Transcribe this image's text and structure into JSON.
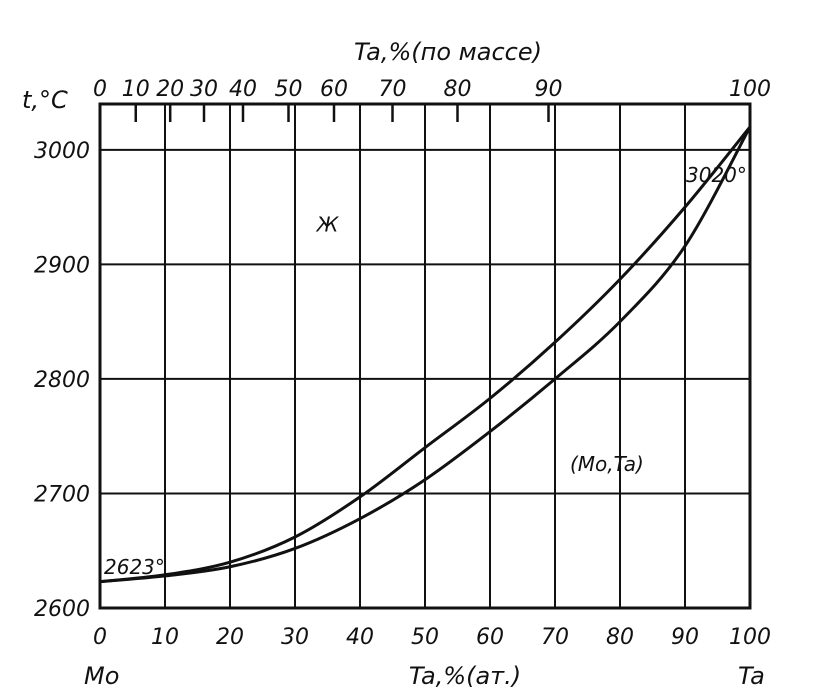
{
  "chart_data": {
    "type": "line",
    "ylabel": "t,°C",
    "xlabel_bottom": "Ta,%(ат.)",
    "xlabel_top": "Ta,%(по массе)",
    "x_end_left": "Mo",
    "x_end_right": "Ta",
    "xlim": [
      0,
      100
    ],
    "ylim": [
      2600,
      3040
    ],
    "x_ticks_bottom": [
      0,
      10,
      20,
      30,
      40,
      50,
      60,
      70,
      80,
      90,
      100
    ],
    "x_tick_labels_bottom": [
      "0",
      "10",
      "20",
      "30",
      "40",
      "50",
      "60",
      "70",
      "80",
      "90",
      "100"
    ],
    "y_ticks": [
      2600,
      2700,
      2800,
      2900,
      3000
    ],
    "y_tick_labels": [
      "2600",
      "2700",
      "2800",
      "2900",
      "3000"
    ],
    "x_tick_labels_top": [
      "0",
      "10",
      "20",
      "30",
      "40",
      "50",
      "60",
      "70",
      "80",
      "90",
      "100"
    ],
    "top_axis_at_atomic_pct": [
      0,
      5.5,
      10.8,
      16,
      22,
      29,
      36,
      45,
      55,
      69,
      100
    ],
    "grid": true,
    "series": [
      {
        "x": [
          0,
          10,
          20,
          30,
          40,
          50,
          60,
          70,
          80,
          90,
          100
        ],
        "y": [
          2623,
          2629,
          2640,
          2662,
          2697,
          2740,
          2783,
          2832,
          2887,
          2950,
          3020
        ]
      },
      {
        "x": [
          0,
          10,
          20,
          30,
          40,
          50,
          60,
          70,
          80,
          90,
          100
        ],
        "y": [
          2623,
          2628,
          2636,
          2652,
          2678,
          2712,
          2754,
          2800,
          2850,
          2916,
          3020
        ]
      }
    ],
    "annotations": [
      {
        "text": "2623°",
        "x": 0,
        "y": 2623
      },
      {
        "text": "3020°",
        "x": 100,
        "y": 3020
      },
      {
        "text": "Ж",
        "x": 35,
        "y": 2920
      },
      {
        "text": "(Mo,Ta)",
        "x": 80,
        "y": 2730
      }
    ]
  }
}
